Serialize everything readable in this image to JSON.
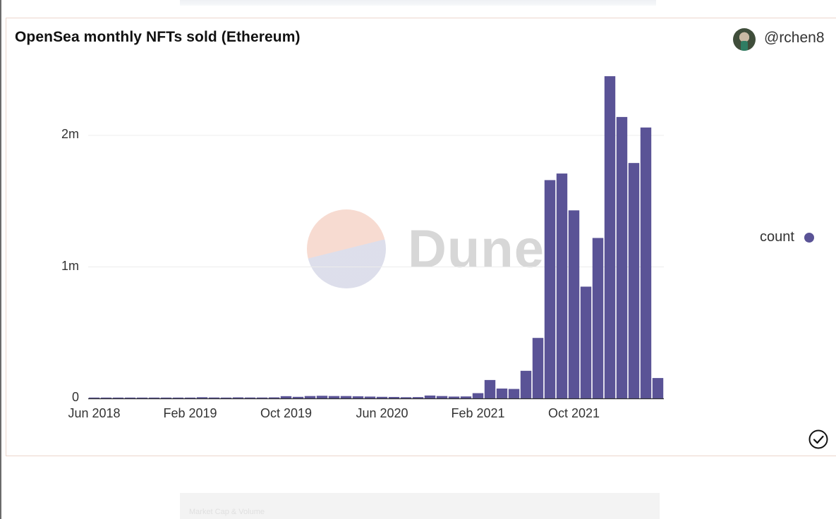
{
  "header": {
    "title": "OpenSea monthly NFTs sold (Ethereum)",
    "username": "@rchen8",
    "avatar_icon": "user-avatar"
  },
  "watermark": {
    "text": "Dune",
    "logo_icon": "dune-logo"
  },
  "footer": {
    "status_icon": "check-circle-icon"
  },
  "background_fragment": {
    "text": "Market Cap & Volume"
  },
  "chart_data": {
    "type": "bar",
    "title": "OpenSea monthly NFTs sold (Ethereum)",
    "xlabel": "",
    "ylabel": "",
    "color": "#5a5396",
    "grid": true,
    "legend_placement": "right",
    "legend": [
      {
        "name": "count",
        "color": "#5a5396"
      }
    ],
    "ylim": [
      0,
      2450000
    ],
    "y_ticks": [
      {
        "value": 0,
        "label": "0"
      },
      {
        "value": 1000000,
        "label": "1m"
      },
      {
        "value": 2000000,
        "label": "2m"
      }
    ],
    "x_ticks": [
      {
        "value": "2018-06",
        "label": "Jun 2018"
      },
      {
        "value": "2019-02",
        "label": "Feb 2019"
      },
      {
        "value": "2019-10",
        "label": "Oct 2019"
      },
      {
        "value": "2020-06",
        "label": "Jun 2020"
      },
      {
        "value": "2021-02",
        "label": "Feb 2021"
      },
      {
        "value": "2021-10",
        "label": "Oct 2021"
      }
    ],
    "series": [
      {
        "name": "count",
        "x": [
          "2018-06",
          "2018-07",
          "2018-08",
          "2018-09",
          "2018-10",
          "2018-11",
          "2018-12",
          "2019-01",
          "2019-02",
          "2019-03",
          "2019-04",
          "2019-05",
          "2019-06",
          "2019-07",
          "2019-08",
          "2019-09",
          "2019-10",
          "2019-11",
          "2019-12",
          "2020-01",
          "2020-02",
          "2020-03",
          "2020-04",
          "2020-05",
          "2020-06",
          "2020-07",
          "2020-08",
          "2020-09",
          "2020-10",
          "2020-11",
          "2020-12",
          "2021-01",
          "2021-02",
          "2021-03",
          "2021-04",
          "2021-05",
          "2021-06",
          "2021-07",
          "2021-08",
          "2021-09",
          "2021-10",
          "2021-11",
          "2021-12",
          "2022-01",
          "2022-02",
          "2022-03",
          "2022-04",
          "2022-05"
        ],
        "values": [
          3000,
          3000,
          3000,
          4000,
          4000,
          4000,
          5000,
          5000,
          6000,
          9000,
          7000,
          6000,
          8000,
          7000,
          7000,
          8000,
          17000,
          12000,
          18000,
          20000,
          18000,
          18000,
          16000,
          14000,
          12000,
          11000,
          9000,
          10000,
          22000,
          18000,
          14000,
          15000,
          40000,
          140000,
          75000,
          72000,
          210000,
          460000,
          1660000,
          1710000,
          1430000,
          850000,
          1220000,
          2450000,
          2140000,
          1790000,
          2060000,
          155000
        ]
      }
    ]
  }
}
